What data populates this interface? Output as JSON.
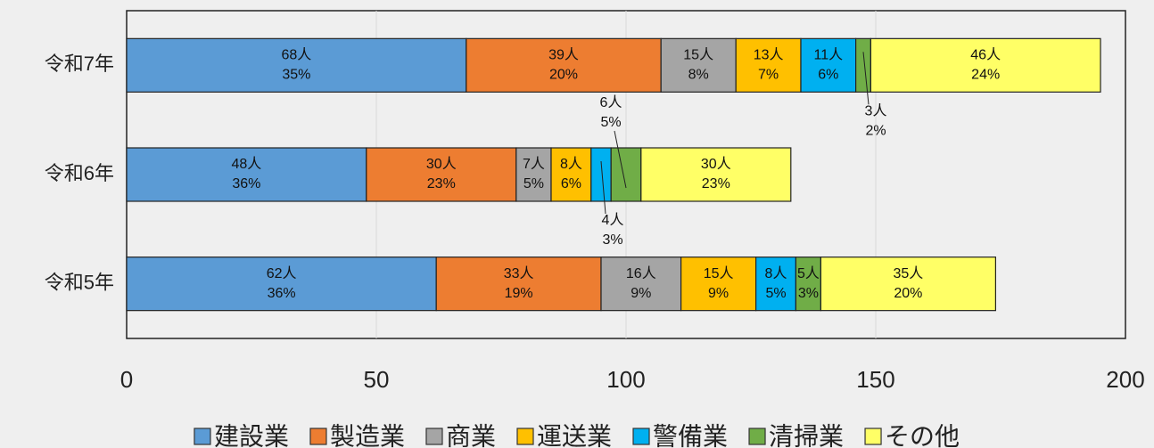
{
  "chart_data": {
    "type": "stacked_bar_horizontal",
    "categories": [
      "令和7年",
      "令和6年",
      "令和5年"
    ],
    "xlim": [
      0,
      200
    ],
    "xticks": [
      0,
      50,
      100,
      150,
      200
    ],
    "grid": true,
    "legend": "bottom",
    "series": [
      {
        "name": "建設業",
        "color": "#5b9bd5",
        "values": [
          68,
          48,
          62
        ],
        "value_labels": [
          "68人",
          "48人",
          "62人"
        ],
        "percent_labels": [
          "35%",
          "36%",
          "36%"
        ]
      },
      {
        "name": "製造業",
        "color": "#ed7d31",
        "values": [
          39,
          30,
          33
        ],
        "value_labels": [
          "39人",
          "30人",
          "33人"
        ],
        "percent_labels": [
          "20%",
          "23%",
          "19%"
        ]
      },
      {
        "name": "商業",
        "color": "#a5a5a5",
        "values": [
          15,
          7,
          16
        ],
        "value_labels": [
          "15人",
          "7人",
          "16人"
        ],
        "percent_labels": [
          "8%",
          "5%",
          "9%"
        ]
      },
      {
        "name": "運送業",
        "color": "#ffc000",
        "values": [
          13,
          8,
          15
        ],
        "value_labels": [
          "13人",
          "8人",
          "15人"
        ],
        "percent_labels": [
          "7%",
          "6%",
          "9%"
        ]
      },
      {
        "name": "警備業",
        "color": "#00b0f0",
        "values": [
          11,
          4,
          8
        ],
        "value_labels": [
          "11人",
          "4人",
          "8人"
        ],
        "percent_labels": [
          "6%",
          "3%",
          "5%"
        ]
      },
      {
        "name": "清掃業",
        "color": "#70ad47",
        "values": [
          3,
          6,
          5
        ],
        "value_labels": [
          "3人",
          "6人",
          "5人"
        ],
        "percent_labels": [
          "2%",
          "5%",
          "3%"
        ]
      },
      {
        "name": "その他",
        "color": "#ffff66",
        "values": [
          46,
          30,
          35
        ],
        "value_labels": [
          "46人",
          "30人",
          "35人"
        ],
        "percent_labels": [
          "24%",
          "23%",
          "20%"
        ]
      }
    ]
  }
}
